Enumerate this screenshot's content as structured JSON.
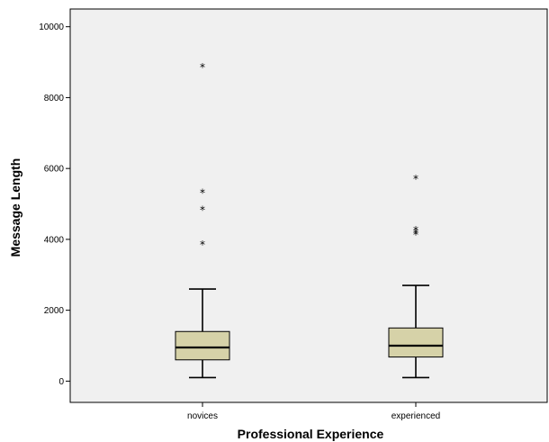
{
  "chart_data": {
    "type": "boxplot",
    "title": "",
    "xlabel": "Professional Experience",
    "ylabel": "Message Length",
    "ylim": [
      -600,
      10500
    ],
    "yticks": [
      0,
      2000,
      4000,
      6000,
      8000,
      10000
    ],
    "grid": false,
    "categories": [
      "novices",
      "experienced"
    ],
    "boxes": [
      {
        "category": "novices",
        "whisker_low": 100,
        "q1": 600,
        "median": 950,
        "q3": 1400,
        "whisker_high": 2600,
        "outliers": [
          3850,
          4820,
          5300,
          8850
        ]
      },
      {
        "category": "experienced",
        "whisker_low": 100,
        "q1": 680,
        "median": 1000,
        "q3": 1500,
        "whisker_high": 2700,
        "outliers": [
          4130,
          4180,
          4250,
          5700
        ]
      }
    ],
    "colors": {
      "plot_background": "#f0f0f0",
      "box_fill": "#d6d2a8",
      "stroke": "#000000"
    }
  }
}
